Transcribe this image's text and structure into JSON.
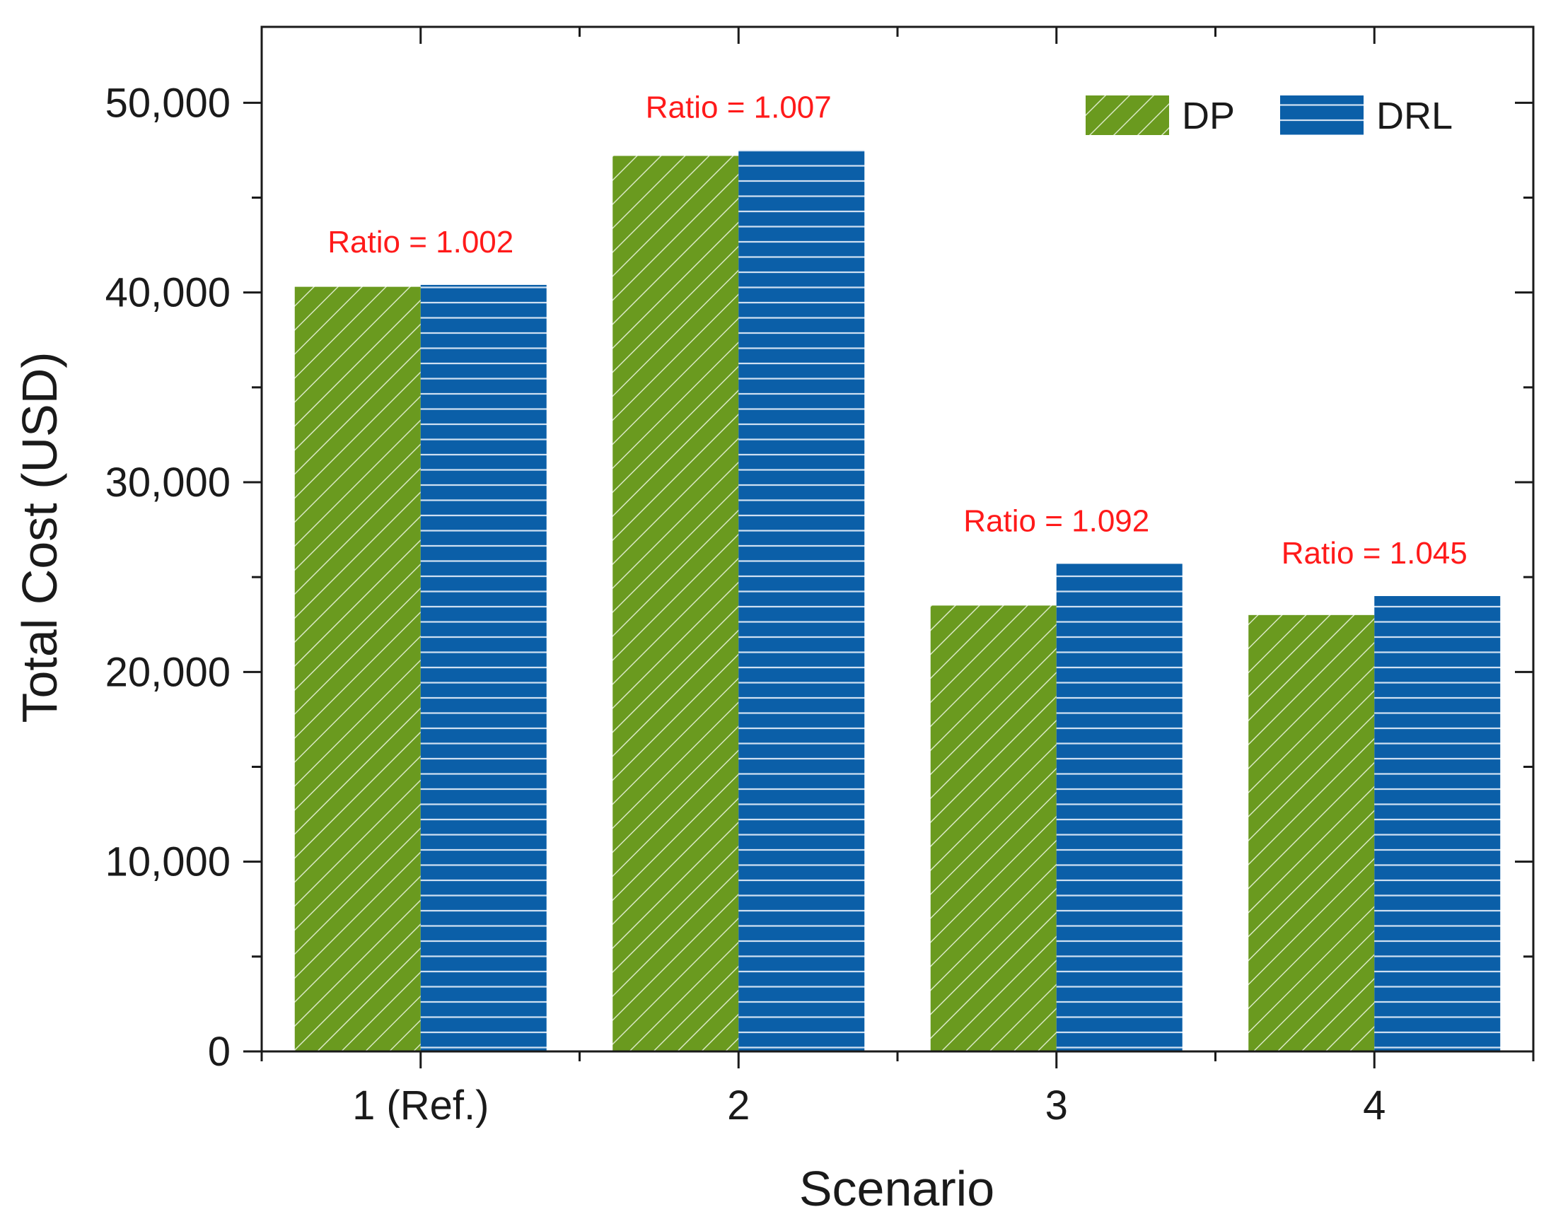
{
  "chart_data": {
    "type": "bar",
    "title": "",
    "xlabel": "Scenario",
    "ylabel": "Total Cost (USD)",
    "categories": [
      "1 (Ref.)",
      "2",
      "3",
      "4"
    ],
    "series": [
      {
        "name": "DP",
        "values": [
          40300,
          47200,
          23500,
          23000
        ],
        "color": "#6a9a1f",
        "pattern": "diagonal-hatch"
      },
      {
        "name": "DRL",
        "values": [
          40400,
          47500,
          25700,
          24000
        ],
        "color": "#0b5fa8",
        "pattern": "horizontal-lines"
      }
    ],
    "ylim": [
      0,
      54000
    ],
    "yticks": [
      0,
      10000,
      20000,
      30000,
      40000,
      50000
    ],
    "ytick_labels": [
      "0",
      "10,000",
      "20,000",
      "30,000",
      "40,000",
      "50,000"
    ],
    "y_minor_step": 5000,
    "annotations": [
      "Ratio = 1.002",
      "Ratio = 1.007",
      "Ratio = 1.092",
      "Ratio = 1.045"
    ],
    "annotation_color": "#ff1a1a",
    "legend_position": "top-right",
    "grid": false
  }
}
